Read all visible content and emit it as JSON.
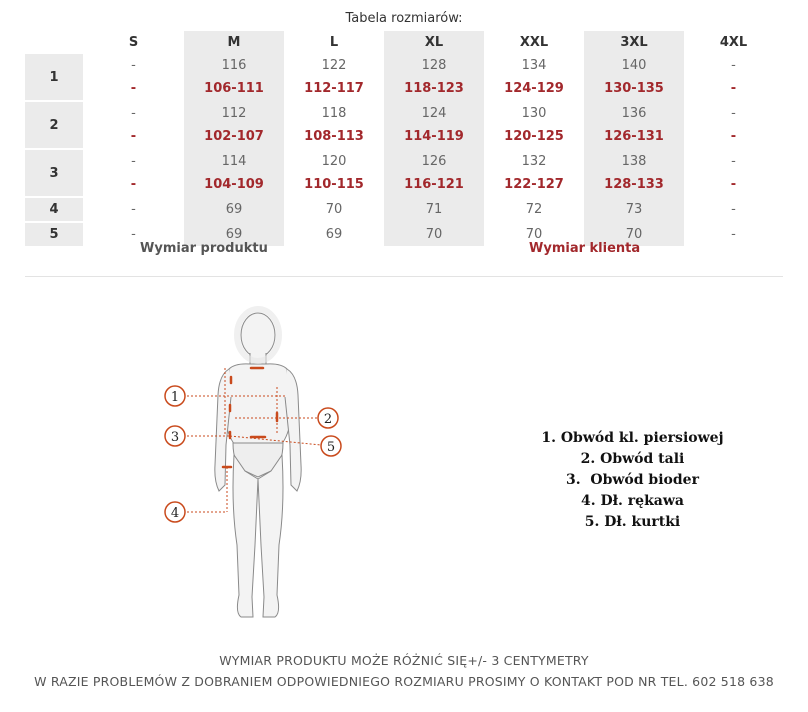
{
  "title": "Tabela rozmiarów:",
  "sizes": [
    "S",
    "M",
    "L",
    "XL",
    "XXL",
    "3XL",
    "4XL"
  ],
  "rows": [
    {
      "label": "1",
      "product": [
        "-",
        "116",
        "122",
        "128",
        "134",
        "140",
        "-"
      ],
      "client": [
        "-",
        "106-111",
        "112-117",
        "118-123",
        "124-129",
        "130-135",
        "-"
      ]
    },
    {
      "label": "2",
      "product": [
        "-",
        "112",
        "118",
        "124",
        "130",
        "136",
        "-"
      ],
      "client": [
        "-",
        "102-107",
        "108-113",
        "114-119",
        "120-125",
        "126-131",
        "-"
      ]
    },
    {
      "label": "3",
      "product": [
        "-",
        "114",
        "120",
        "126",
        "132",
        "138",
        "-"
      ],
      "client": [
        "-",
        "104-109",
        "110-115",
        "116-121",
        "122-127",
        "128-133",
        "-"
      ]
    },
    {
      "label": "4",
      "product": [
        "-",
        "69",
        "70",
        "71",
        "72",
        "73",
        "-"
      ]
    },
    {
      "label": "5",
      "product": [
        "-",
        "69",
        "69",
        "70",
        "70",
        "70",
        "-"
      ]
    }
  ],
  "legend": {
    "product": "Wymiar produktu",
    "client": "Wymiar klienta"
  },
  "figure_markers": [
    "1",
    "2",
    "3",
    "4",
    "5"
  ],
  "measurements": [
    "1. Obwód kl. piersiowej",
    "2. Obwód tali",
    "3.  Obwód bioder",
    "4. Dł. rękawa",
    "5. Dł. kurtki"
  ],
  "notes": [
    "WYMIAR PRODUKTU MOŻE RÓŻNIĆ SIĘ+/- 3 CENTYMETRY",
    "W RAZIE PROBLEMÓW Z DOBRANIEM ODPOWIEDNIEGO ROZMIARU PROSIMY O KONTAKT POD NR TEL. 602 518 638"
  ],
  "colors": {
    "client_text": "#a2282c",
    "marker": "#c94a1c",
    "shade": "#ebebeb"
  }
}
